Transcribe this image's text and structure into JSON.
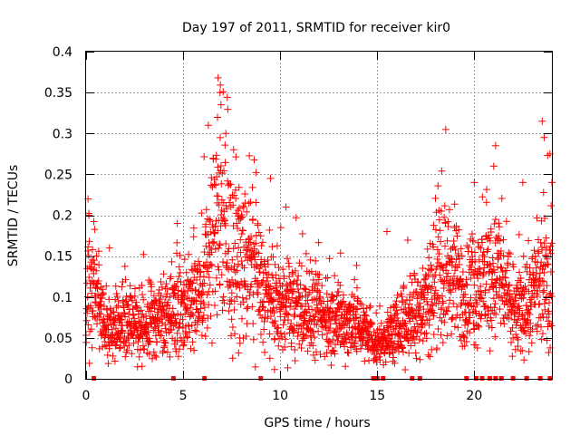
{
  "chart_data": {
    "type": "scatter",
    "title": "Day 197 of 2011, SRMTID for receiver kir0",
    "xlabel": "GPS time / hours",
    "ylabel": "SRMTID / TECUs",
    "xlim": [
      0,
      24
    ],
    "ylim": [
      0,
      0.4
    ],
    "xticks": [
      0,
      5,
      10,
      15,
      20
    ],
    "xtick_labels": [
      "0",
      "5",
      "10",
      "15",
      "20"
    ],
    "yticks": [
      0,
      0.05,
      0.1,
      0.15,
      0.2,
      0.25,
      0.3,
      0.35,
      0.4
    ],
    "ytick_labels": [
      "0",
      "0.05",
      "0.1",
      "0.15",
      "0.2",
      "0.25",
      "0.3",
      "0.35",
      "0.4"
    ],
    "grid": true,
    "marker": "plus",
    "color": "#ff0000",
    "series": [
      {
        "name": "SRMTID",
        "approximate": true,
        "trend": [
          {
            "x": 0.0,
            "y": 0.09
          },
          {
            "x": 0.3,
            "y": 0.13
          },
          {
            "x": 1.0,
            "y": 0.06
          },
          {
            "x": 2.0,
            "y": 0.07
          },
          {
            "x": 3.0,
            "y": 0.07
          },
          {
            "x": 4.0,
            "y": 0.075
          },
          {
            "x": 5.0,
            "y": 0.09
          },
          {
            "x": 6.0,
            "y": 0.11
          },
          {
            "x": 6.8,
            "y": 0.2
          },
          {
            "x": 7.5,
            "y": 0.14
          },
          {
            "x": 8.5,
            "y": 0.14
          },
          {
            "x": 9.5,
            "y": 0.09
          },
          {
            "x": 11.0,
            "y": 0.085
          },
          {
            "x": 12.0,
            "y": 0.075
          },
          {
            "x": 13.0,
            "y": 0.07
          },
          {
            "x": 14.0,
            "y": 0.07
          },
          {
            "x": 14.8,
            "y": 0.04
          },
          {
            "x": 15.5,
            "y": 0.05
          },
          {
            "x": 16.5,
            "y": 0.07
          },
          {
            "x": 17.5,
            "y": 0.1
          },
          {
            "x": 18.5,
            "y": 0.13
          },
          {
            "x": 19.5,
            "y": 0.1
          },
          {
            "x": 20.5,
            "y": 0.12
          },
          {
            "x": 21.3,
            "y": 0.13
          },
          {
            "x": 22.0,
            "y": 0.075
          },
          {
            "x": 23.0,
            "y": 0.1
          },
          {
            "x": 24.0,
            "y": 0.12
          }
        ],
        "notable_points": [
          {
            "x": 0.1,
            "y": 0.22
          },
          {
            "x": 0.15,
            "y": 0.2
          },
          {
            "x": 1.2,
            "y": 0.16
          },
          {
            "x": 4.7,
            "y": 0.19
          },
          {
            "x": 6.3,
            "y": 0.31
          },
          {
            "x": 6.8,
            "y": 0.368
          },
          {
            "x": 6.9,
            "y": 0.35
          },
          {
            "x": 6.95,
            "y": 0.335
          },
          {
            "x": 7.2,
            "y": 0.3
          },
          {
            "x": 7.6,
            "y": 0.28
          },
          {
            "x": 9.5,
            "y": 0.245
          },
          {
            "x": 10.3,
            "y": 0.21
          },
          {
            "x": 15.5,
            "y": 0.18
          },
          {
            "x": 18.3,
            "y": 0.205
          },
          {
            "x": 20.0,
            "y": 0.24
          },
          {
            "x": 21.1,
            "y": 0.285
          },
          {
            "x": 21.0,
            "y": 0.26
          },
          {
            "x": 22.5,
            "y": 0.24
          },
          {
            "x": 23.5,
            "y": 0.315
          },
          {
            "x": 23.6,
            "y": 0.295
          },
          {
            "x": 23.9,
            "y": 0.275
          },
          {
            "x": 24.0,
            "y": 0.24
          }
        ],
        "zero_x": [
          0.4,
          4.5,
          6.1,
          9.0,
          14.8,
          15.0,
          15.3,
          16.8,
          17.2,
          19.6,
          20.1,
          20.4,
          20.8,
          21.1,
          21.4,
          22.0,
          22.7,
          23.4,
          23.9
        ]
      }
    ]
  }
}
